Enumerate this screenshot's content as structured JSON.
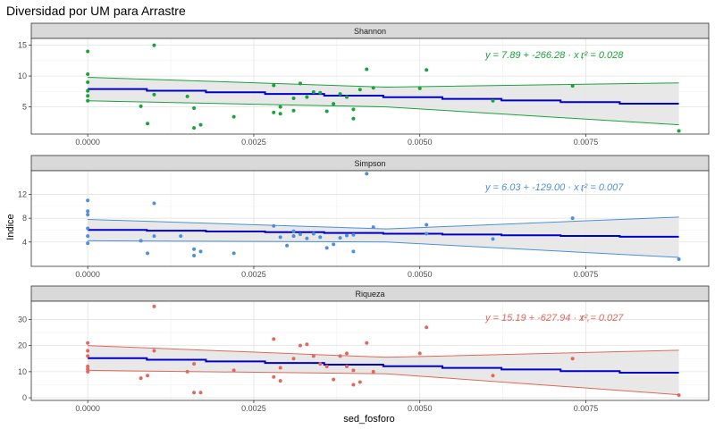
{
  "title": "Diversidad por UM para Arrastre",
  "xlabel": "sed_fosforo",
  "ylabel": "Indice",
  "fit_line_color": "#0000cc",
  "ribbon_color": "#e6e6e6",
  "strip_color": "#d9d9d9",
  "x_ticks": [
    0,
    0.0025,
    0.005,
    0.0075
  ],
  "x_tick_labels": [
    "0.0000",
    "0.0025",
    "0.0050",
    "0.0075"
  ],
  "chart_data": [
    {
      "type": "scatter",
      "panel": "Shannon",
      "color": "#1aa33a",
      "ylim": [
        0.6,
        16.1
      ],
      "xlim": [
        -0.00085,
        0.00935
      ],
      "y_ticks": [
        5,
        10,
        15
      ],
      "y_tick_labels": [
        "5",
        "10",
        "15"
      ],
      "eq_y": "y = 7.89 + -266.28 · x ,",
      "eq_r2": "r² = 0.028",
      "fit": {
        "x": [
          0,
          0.0089
        ],
        "y": [
          7.89,
          5.52
        ]
      },
      "ci_upper": {
        "x": [
          0,
          0.0045,
          0.0089
        ],
        "y": [
          9.8,
          8.2,
          8.9
        ]
      },
      "ci_lower": {
        "x": [
          0,
          0.0045,
          0.0089
        ],
        "y": [
          6.0,
          5.0,
          2.1
        ]
      },
      "points": {
        "x": [
          0,
          0,
          0,
          0,
          0,
          0,
          0.0008,
          0.0009,
          0.001,
          0.001,
          0.0015,
          0.0016,
          0.0016,
          0.0017,
          0.0022,
          0.0028,
          0.0028,
          0.0029,
          0.0029,
          0.0031,
          0.0031,
          0.0032,
          0.0033,
          0.0034,
          0.0035,
          0.0036,
          0.0037,
          0.0038,
          0.0039,
          0.004,
          0.004,
          0.0041,
          0.0042,
          0.0043,
          0.005,
          0.0051,
          0.0061,
          0.0073,
          0.0089
        ],
        "y": [
          14,
          10.3,
          9,
          7.6,
          6.8,
          6,
          5.1,
          2.3,
          15,
          7,
          6.7,
          1.6,
          4.8,
          2.1,
          3.4,
          8.5,
          4.1,
          5,
          3.9,
          6.4,
          4.4,
          8.8,
          6.6,
          7.4,
          7.3,
          4.3,
          5.5,
          7.1,
          6.6,
          4.6,
          3.1,
          7.8,
          11.1,
          8.1,
          8,
          11,
          6,
          8.4,
          1.1
        ]
      }
    },
    {
      "type": "scatter",
      "panel": "Simpson",
      "color": "#4d8fdb",
      "ylim": [
        -0.1,
        16
      ],
      "xlim": [
        -0.00085,
        0.00935
      ],
      "y_ticks": [
        4,
        8,
        12
      ],
      "y_tick_labels": [
        "4",
        "8",
        "12"
      ],
      "eq_y": "y = 6.03 + -129.00 · x ,",
      "eq_r2": "r² = 0.007",
      "fit": {
        "x": [
          0,
          0.0089
        ],
        "y": [
          6.03,
          4.88
        ]
      },
      "ci_upper": {
        "x": [
          0,
          0.0045,
          0.0089
        ],
        "y": [
          7.8,
          6.2,
          8.2
        ]
      },
      "ci_lower": {
        "x": [
          0,
          0.0045,
          0.0089
        ],
        "y": [
          4.2,
          4.0,
          1.4
        ]
      },
      "points": {
        "x": [
          0,
          0,
          0,
          0,
          0,
          0,
          0.0008,
          0.0009,
          0.001,
          0.001,
          0.0014,
          0.0016,
          0.0016,
          0.0017,
          0.0022,
          0.0028,
          0.0029,
          0.003,
          0.0031,
          0.0031,
          0.0032,
          0.0033,
          0.0034,
          0.0035,
          0.0036,
          0.0037,
          0.0038,
          0.0039,
          0.004,
          0.004,
          0.0042,
          0.0043,
          0.0051,
          0.0051,
          0.0061,
          0.0073,
          0.0089
        ],
        "y": [
          11,
          9.2,
          8.6,
          6.3,
          5,
          3.8,
          4.2,
          2.1,
          10.5,
          5,
          5,
          2.8,
          1.7,
          2.4,
          2.1,
          6.7,
          4.8,
          3.4,
          5.8,
          5,
          5.3,
          4.6,
          5.4,
          4.8,
          3,
          3.6,
          4.7,
          5.1,
          5.2,
          2.4,
          15.5,
          6.5,
          6.9,
          5.4,
          4.5,
          8,
          1.1
        ]
      }
    },
    {
      "type": "scatter",
      "panel": "Riqueza",
      "color": "#e0685c",
      "ylim": [
        -1,
        37
      ],
      "xlim": [
        -0.00085,
        0.00935
      ],
      "y_ticks": [
        0,
        10,
        20,
        30
      ],
      "y_tick_labels": [
        "0",
        "10",
        "20",
        "30"
      ],
      "eq_y": "y = 15.19 + -627.94 · x ,",
      "eq_r2": "r² = 0.027",
      "fit": {
        "x": [
          0,
          0.0089
        ],
        "y": [
          15.19,
          9.6
        ]
      },
      "ci_upper": {
        "x": [
          0,
          0.0045,
          0.0089
        ],
        "y": [
          20,
          15.5,
          18.2
        ]
      },
      "ci_lower": {
        "x": [
          0,
          0.0045,
          0.0089
        ],
        "y": [
          10.5,
          9.2,
          1.2
        ]
      },
      "points": {
        "x": [
          0,
          0,
          0,
          0,
          0,
          0,
          0.0008,
          0.0009,
          0.001,
          0.001,
          0.0015,
          0.0016,
          0.0016,
          0.0017,
          0.0022,
          0.0028,
          0.0028,
          0.0029,
          0.0029,
          0.0031,
          0.0032,
          0.0033,
          0.0034,
          0.0035,
          0.0036,
          0.0037,
          0.0038,
          0.0039,
          0.0039,
          0.004,
          0.004,
          0.0041,
          0.0042,
          0.0043,
          0.005,
          0.0051,
          0.0061,
          0.0073,
          0.0089
        ],
        "y": [
          21,
          18,
          16,
          12,
          11,
          10,
          7.5,
          8.5,
          35,
          18,
          10,
          2,
          13,
          2,
          10.5,
          22.5,
          8,
          11.5,
          6.5,
          15,
          20,
          20.5,
          16,
          13,
          12,
          7,
          16,
          17,
          12,
          5,
          10.5,
          6,
          21,
          10,
          17,
          27,
          8.5,
          15,
          1
        ]
      }
    }
  ]
}
